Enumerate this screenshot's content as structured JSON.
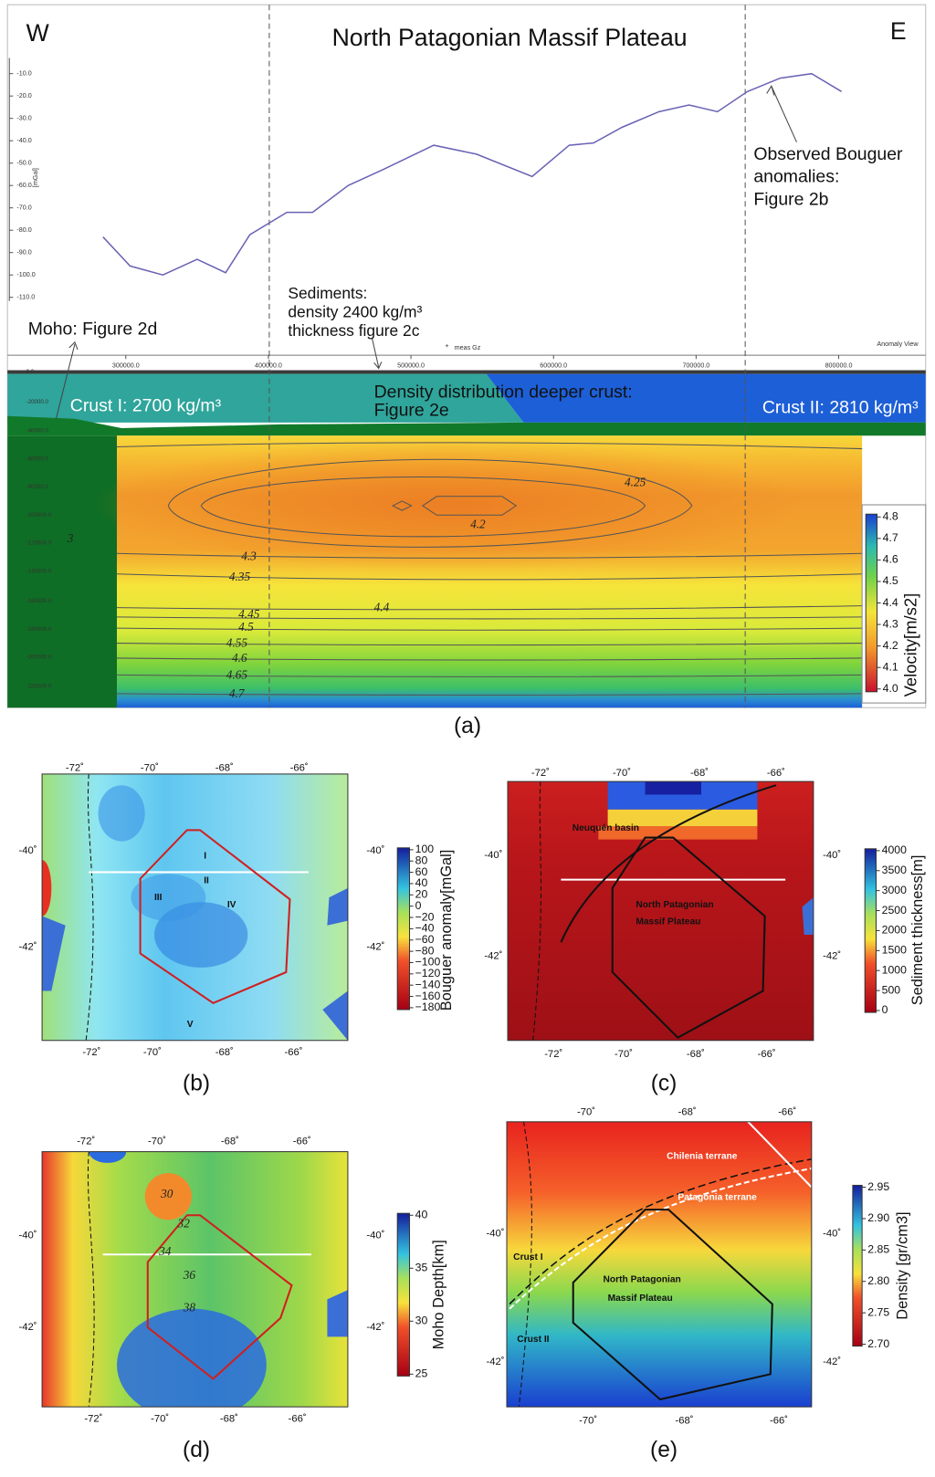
{
  "panel_a": {
    "west": "W",
    "east": "E",
    "title": "North Patagonian Massif Plateau",
    "profile": {
      "y_axis_label": "[mGal]",
      "legend": "meas Gz",
      "view_label": "Anomaly View",
      "x": [
        284000,
        303000,
        326000,
        350000,
        370000,
        387000,
        413000,
        431000,
        456000,
        480000,
        516000,
        546000,
        585000,
        611000,
        628000,
        648000,
        674000,
        695000,
        715000,
        736000,
        759000,
        781000,
        802000
      ],
      "values": [
        -83,
        -96,
        -100,
        -93,
        -99,
        -82,
        -72,
        -72,
        -60,
        -53,
        -42,
        -46,
        -56,
        -42,
        -41,
        -34,
        -27,
        -24,
        -27,
        -18,
        -12,
        -10,
        -18
      ],
      "color": "#6a63b5",
      "xlim": [
        217000,
        861000
      ],
      "ylim": [
        -115,
        -3
      ],
      "xticks": [
        {
          "value": 300000,
          "label": "300000.0"
        },
        {
          "value": 400000,
          "label": "400000.0"
        },
        {
          "value": 500000,
          "label": "500000.0"
        },
        {
          "value": 600000,
          "label": "600000.0"
        },
        {
          "value": 700000,
          "label": "700000.0"
        },
        {
          "value": 800000,
          "label": "800000.0"
        }
      ],
      "yticks": [
        {
          "value": -10,
          "label": "-10.0"
        },
        {
          "value": -20,
          "label": "-20.0"
        },
        {
          "value": -30,
          "label": "-30.0"
        },
        {
          "value": -40,
          "label": "-40.0"
        },
        {
          "value": -50,
          "label": "-50.0"
        },
        {
          "value": -60,
          "label": "-60.0"
        },
        {
          "value": -70,
          "label": "-70.0"
        },
        {
          "value": -80,
          "label": "-80.0"
        },
        {
          "value": -90,
          "label": "-90.0"
        },
        {
          "value": -100,
          "label": "-100.0"
        },
        {
          "value": -110,
          "label": "-110.0"
        }
      ]
    },
    "observed": [
      "Observed Bouguer",
      "anomalies:",
      "Figure 2b"
    ],
    "sediments": [
      "Sediments:",
      "density 2400 kg/m³",
      "thickness figure 2c"
    ],
    "moho": "Moho: Figure 2d",
    "deeper_crust": [
      "Density distribution deeper crust:",
      "Figure 2e"
    ],
    "crust1": "Crust I: 2700 kg/m³",
    "crust2": "Crust II: 2810 kg/m³",
    "depth_labels": [
      "0.0",
      "-20000.0",
      "-40000.0",
      "-60000.0",
      "-80000.0",
      "-100000.0",
      "-120000.0",
      "-140000.0",
      "-160000.0",
      "-180000.0",
      "-200000.0",
      "-220000.0"
    ],
    "contour_labels": [
      "4.25",
      "4.2",
      "4.3",
      "4.35",
      "4.4",
      "4.45",
      "4.5",
      "4.55",
      "4.6",
      "4.65",
      "4.7",
      "3"
    ],
    "colorbar": {
      "title": "Velocity[m/s2]",
      "ticks": [
        "4.8",
        "4.7",
        "4.6",
        "4.5",
        "4.4",
        "4.3",
        "4.2",
        "4.1",
        "4.0"
      ]
    },
    "caption": "(a)"
  },
  "maps": [
    {
      "caption": "(b)",
      "lon_top": [
        "-72˚",
        "-70˚",
        "-68˚",
        "-66˚"
      ],
      "lon_bottom": [
        "-72˚",
        "-70˚",
        "-68˚",
        "-66˚"
      ],
      "lat_left": [
        "-40˚",
        "-42˚"
      ],
      "lat_right": [
        "-40˚",
        "-42˚"
      ],
      "colorbar_title": "Bouguer anomaly[mGal]",
      "colorbar_ticks": [
        "100",
        "80",
        "60",
        "40",
        "20",
        "0",
        "−20",
        "−40",
        "−60",
        "−80",
        "−100",
        "−120",
        "−140",
        "−160",
        "−180"
      ],
      "labels": [
        "I",
        "II",
        "III",
        "IV",
        "V"
      ]
    },
    {
      "caption": "(c)",
      "lon_top": [
        "-72˚",
        "-70˚",
        "-68˚",
        "-66˚"
      ],
      "lon_bottom": [
        "-72˚",
        "-70˚",
        "-68˚",
        "-66˚"
      ],
      "lat_left": [
        "-40˚",
        "-42˚"
      ],
      "lat_right": [
        "-40˚",
        "-42˚"
      ],
      "colorbar_title": "Sediment thickness[m]",
      "colorbar_ticks": [
        "4000",
        "3500",
        "3000",
        "2500",
        "2000",
        "1500",
        "1000",
        "500",
        "0"
      ],
      "labels": [
        "Neuquén basin",
        "North Patagonian",
        "Massif Plateau"
      ]
    },
    {
      "caption": "(d)",
      "lon_top": [
        "-72˚",
        "-70˚",
        "-68˚",
        "-66˚"
      ],
      "lon_bottom": [
        "-72˚",
        "-70˚",
        "-68˚",
        "-66˚"
      ],
      "lat_left": [
        "-40˚",
        "-42˚"
      ],
      "lat_right": [
        "-40˚",
        "-42˚"
      ],
      "colorbar_title": "Moho Depth[km]",
      "colorbar_ticks": [
        "40",
        "35",
        "30",
        "25"
      ],
      "labels": [
        "30",
        "32",
        "34",
        "36",
        "38"
      ]
    },
    {
      "caption": "(e)",
      "lon_top": [
        "-70˚",
        "-68˚",
        "-66˚"
      ],
      "lon_bottom": [
        "-70˚",
        "-68˚",
        "-66˚"
      ],
      "lat_left": [
        "-40˚",
        "-42˚"
      ],
      "lat_right": [
        "-40˚",
        "-42˚"
      ],
      "colorbar_title": "Density [gr/cm3]",
      "colorbar_ticks": [
        "2.95",
        "2.90",
        "2.85",
        "2.80",
        "2.75",
        "2.70"
      ],
      "labels": [
        "Chilenia terrane",
        "Patagonia terrane",
        "Crust I",
        "Crust II",
        "North Patagonian",
        "Massif Plateau"
      ]
    }
  ]
}
